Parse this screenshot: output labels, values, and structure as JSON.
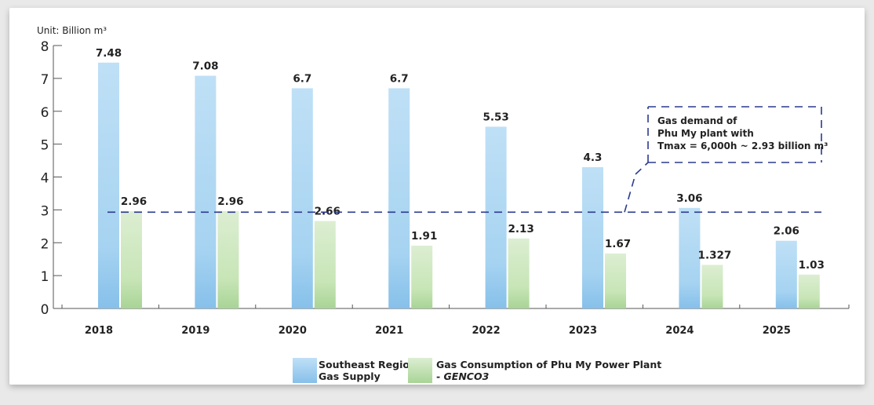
{
  "chart_data": {
    "type": "bar",
    "unit_label": "Unit: Billion m³",
    "categories": [
      "2018",
      "2019",
      "2020",
      "2021",
      "2022",
      "2023",
      "2024",
      "2025"
    ],
    "series": [
      {
        "name": "Southeast Region Gas Supply",
        "values": [
          7.48,
          7.08,
          6.7,
          6.7,
          5.53,
          4.3,
          3.06,
          2.06
        ],
        "labels": [
          "7.48",
          "7.08",
          "6.7",
          "6.7",
          "5.53",
          "4.3",
          "3.06",
          "2.06"
        ],
        "color": "#90c8ee"
      },
      {
        "name": "Gas Consumption of Phu My Power Plant - GENCO3",
        "values": [
          2.96,
          2.96,
          2.66,
          1.91,
          2.13,
          1.67,
          1.327,
          1.03
        ],
        "labels": [
          "2.96",
          "2.96",
          "2.66",
          "1.91",
          "2.13",
          "1.67",
          "1.327",
          "1.03"
        ],
        "color": "#b6dca3"
      }
    ],
    "yticks": [
      "0",
      "1",
      "2",
      "3",
      "4",
      "5",
      "6",
      "7",
      "8"
    ],
    "ylim": [
      0,
      8
    ],
    "reference_line": {
      "value": 2.93,
      "color": "#2b3a8f"
    },
    "annotation": {
      "lines": [
        "Gas demand of",
        "Phu My plant with",
        "Tmax = 6,000h ~ 2.93 billion m³"
      ]
    },
    "legend": [
      {
        "line1": "Southeast Region",
        "line2": "Gas Supply",
        "color": "#90c8ee"
      },
      {
        "line1": "Gas Consumption of Phu My Power Plant",
        "line2_prefix": "- ",
        "line2_italic": "GENCO3",
        "color": "#b6dca3"
      }
    ],
    "legend_position": "bottom-center",
    "grid": false
  }
}
